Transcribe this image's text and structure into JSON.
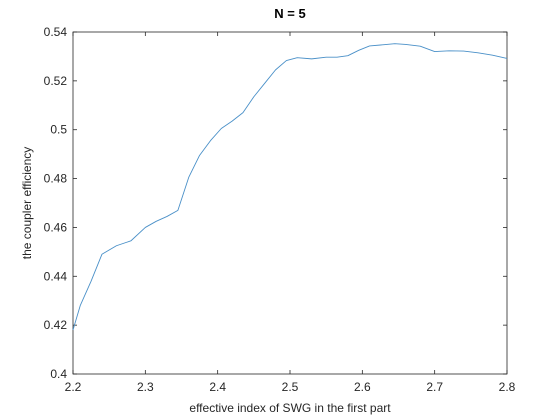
{
  "chart_data": {
    "type": "line",
    "title": "N = 5",
    "xlabel": "effective index of SWG in the first part",
    "ylabel": "the coupler efficiency",
    "xlim": [
      2.2,
      2.8
    ],
    "ylim": [
      0.4,
      0.54
    ],
    "xticks": [
      2.2,
      2.3,
      2.4,
      2.5,
      2.6,
      2.7,
      2.8
    ],
    "yticks": [
      0.4,
      0.42,
      0.44,
      0.46,
      0.48,
      0.5,
      0.52,
      0.54
    ],
    "xtick_labels": [
      "2.2",
      "2.3",
      "2.4",
      "2.5",
      "2.6",
      "2.7",
      "2.8"
    ],
    "ytick_labels": [
      "0.4",
      "0.42",
      "0.44",
      "0.46",
      "0.48",
      "0.5",
      "0.52",
      "0.54"
    ],
    "grid": false,
    "line_color": "#4a90c8",
    "series": [
      {
        "x": [
          2.2,
          2.21,
          2.225,
          2.24,
          2.26,
          2.28,
          2.3,
          2.315,
          2.33,
          2.345,
          2.36,
          2.375,
          2.39,
          2.405,
          2.42,
          2.435,
          2.45,
          2.465,
          2.48,
          2.495,
          2.51,
          2.53,
          2.55,
          2.565,
          2.58,
          2.595,
          2.61,
          2.63,
          2.645,
          2.66,
          2.68,
          2.7,
          2.72,
          2.74,
          2.76,
          2.78,
          2.8
        ],
        "values": [
          0.418,
          0.428,
          0.438,
          0.449,
          0.4525,
          0.4545,
          0.46,
          0.4625,
          0.4645,
          0.467,
          0.4805,
          0.4895,
          0.4955,
          0.5005,
          0.5035,
          0.507,
          0.5135,
          0.519,
          0.5245,
          0.5283,
          0.5295,
          0.529,
          0.5297,
          0.5297,
          0.5303,
          0.5325,
          0.5343,
          0.5348,
          0.5352,
          0.5349,
          0.5342,
          0.532,
          0.5323,
          0.5322,
          0.5315,
          0.5305,
          0.5292
        ]
      }
    ]
  }
}
